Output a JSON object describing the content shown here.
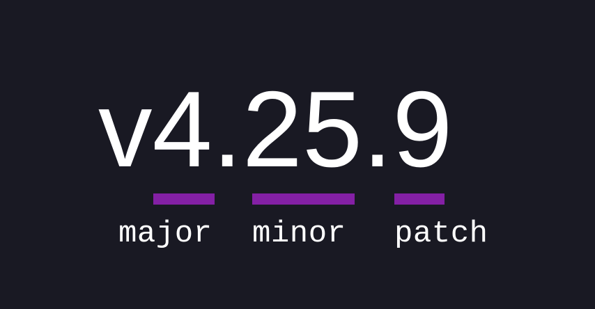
{
  "version": "v4.25.9",
  "accent_color": "#8420a5",
  "segments": [
    {
      "label": "major"
    },
    {
      "label": "minor"
    },
    {
      "label": "patch"
    }
  ]
}
